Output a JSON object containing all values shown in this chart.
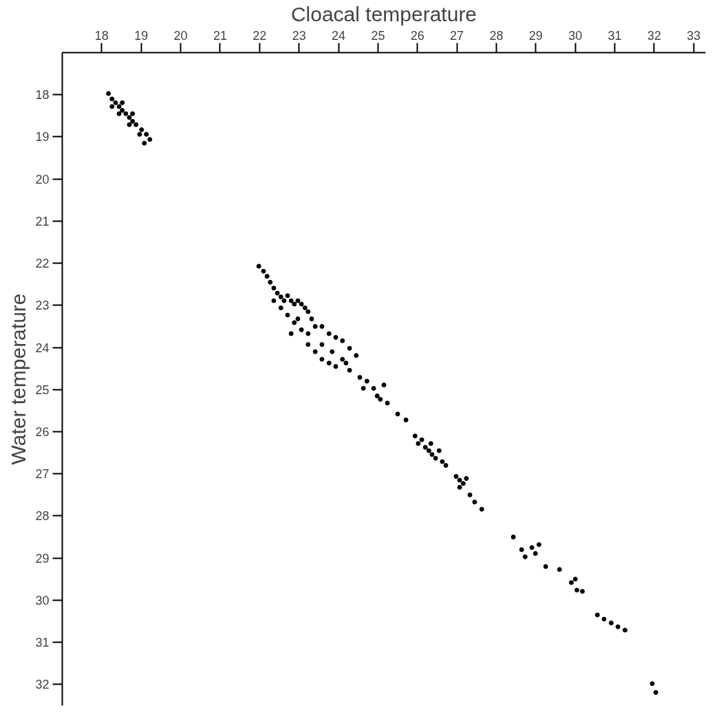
{
  "chart_data": {
    "type": "scatter",
    "xlabel": "Cloacal temperature",
    "ylabel": "Water temperature",
    "xlim": [
      17,
      33.3
    ],
    "ylim": [
      32.5,
      17
    ],
    "xticks": [
      18,
      19,
      20,
      21,
      22,
      23,
      24,
      25,
      26,
      27,
      28,
      29,
      30,
      31,
      32,
      33
    ],
    "yticks": [
      18,
      19,
      20,
      21,
      22,
      23,
      24,
      25,
      26,
      27,
      28,
      29,
      30,
      31,
      32
    ],
    "grid": false,
    "marker": "circle",
    "series": [
      {
        "color": "#000000",
        "x": [
          18.17,
          18.26,
          18.35,
          18.44,
          18.52,
          18.61,
          18.7,
          18.78,
          18.87,
          19.01,
          19.13,
          19.22,
          18.26,
          18.44,
          18.7,
          18.96,
          19.08,
          18.52,
          18.78,
          21.98,
          22.1,
          22.19,
          22.27,
          22.36,
          22.45,
          22.54,
          22.62,
          22.71,
          22.8,
          22.88,
          22.97,
          23.06,
          23.15,
          23.23,
          22.36,
          22.54,
          22.71,
          22.88,
          23.06,
          23.23,
          23.41,
          23.58,
          23.76,
          23.93,
          24.1,
          24.28,
          24.45,
          23.23,
          23.41,
          23.58,
          23.76,
          23.93,
          24.1,
          24.28,
          24.54,
          24.72,
          24.89,
          24.98,
          25.06,
          25.15,
          24.63,
          22.97,
          23.32,
          22.8,
          23.58,
          23.84,
          24.19,
          25.24,
          25.5,
          25.71,
          25.94,
          26.02,
          26.2,
          26.29,
          26.37,
          26.46,
          26.55,
          26.11,
          26.34,
          26.63,
          26.72,
          26.98,
          27.07,
          27.16,
          27.24,
          27.07,
          27.33,
          27.45,
          27.63,
          28.43,
          28.64,
          28.73,
          28.9,
          28.99,
          29.08,
          29.25,
          29.6,
          29.9,
          30.0,
          30.04,
          30.18,
          30.56,
          30.73,
          30.91,
          31.08,
          31.26,
          31.95,
          32.04
        ],
        "values": [
          17.97,
          18.1,
          18.19,
          18.28,
          18.37,
          18.45,
          18.54,
          18.63,
          18.71,
          18.83,
          18.94,
          19.06,
          18.28,
          18.45,
          18.71,
          18.94,
          19.15,
          18.19,
          18.45,
          22.07,
          22.19,
          22.31,
          22.45,
          22.59,
          22.71,
          22.8,
          22.89,
          22.77,
          22.89,
          22.97,
          22.89,
          22.97,
          23.06,
          23.15,
          22.89,
          23.06,
          23.23,
          23.41,
          23.58,
          23.67,
          23.5,
          23.5,
          23.67,
          23.76,
          23.84,
          24.02,
          24.19,
          23.93,
          24.1,
          24.28,
          24.37,
          24.45,
          24.28,
          24.54,
          24.71,
          24.8,
          24.97,
          25.15,
          25.23,
          24.89,
          24.97,
          23.32,
          23.32,
          23.67,
          23.93,
          24.1,
          24.37,
          25.32,
          25.58,
          25.72,
          26.1,
          26.28,
          26.37,
          26.45,
          26.54,
          26.63,
          26.45,
          26.19,
          26.28,
          26.71,
          26.8,
          27.06,
          27.15,
          27.23,
          27.11,
          27.32,
          27.5,
          27.67,
          27.84,
          28.5,
          28.8,
          28.97,
          28.75,
          28.89,
          28.68,
          29.2,
          29.27,
          29.58,
          29.5,
          29.76,
          29.79,
          30.35,
          30.45,
          30.54,
          30.63,
          30.71,
          31.98,
          32.19
        ]
      }
    ]
  }
}
